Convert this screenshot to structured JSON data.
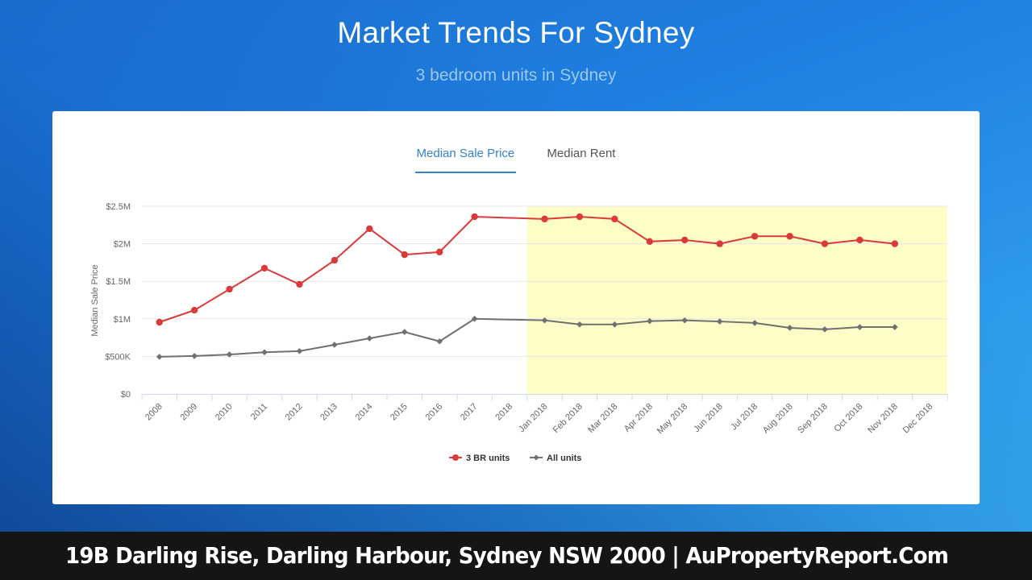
{
  "header": {
    "title": "Market Trends For Sydney",
    "subtitle": "3 bedroom units in Sydney"
  },
  "tabs": [
    {
      "label": "Median Sale Price",
      "active": true
    },
    {
      "label": "Median Rent",
      "active": false
    }
  ],
  "footer": {
    "text": "19B Darling Rise, Darling Harbour, Sydney NSW 2000 | AuPropertyReport.Com"
  },
  "colors": {
    "series_3br": "#d93a3a",
    "series_all": "#707070",
    "highlight_band": "#fdfdc8",
    "tab_active": "#3383cc",
    "footer_bg": "#151515"
  },
  "chart_data": {
    "type": "line",
    "title": "",
    "xlabel": "",
    "ylabel": "Median Sale Price",
    "ylim": [
      0,
      2500000
    ],
    "y_ticks": [
      "$0",
      "$500K",
      "$1M",
      "$1.5M",
      "$2M",
      "$2.5M"
    ],
    "y_tick_values": [
      0,
      500000,
      1000000,
      1500000,
      2000000,
      2500000
    ],
    "grid": true,
    "legend_position": "bottom",
    "categories": [
      "2008",
      "2009",
      "2010",
      "2011",
      "2012",
      "2013",
      "2014",
      "2015",
      "2016",
      "2017",
      "2018",
      "Jan 2018",
      "Feb 2018",
      "Mar 2018",
      "Apr 2018",
      "May 2018",
      "Jun 2018",
      "Jul 2018",
      "Aug 2018",
      "Sep 2018",
      "Oct 2018",
      "Nov 2018",
      "Dec 2018"
    ],
    "highlight_range": {
      "from": "Jan 2018",
      "to": "Dec 2018"
    },
    "series": [
      {
        "name": "3 BR units",
        "marker": "circle",
        "values": [
          955000,
          1115000,
          1395000,
          1675000,
          1460000,
          1780000,
          2200000,
          1855000,
          1890000,
          2360000,
          null,
          2330000,
          2360000,
          2330000,
          2030000,
          2050000,
          2000000,
          2100000,
          2100000,
          2000000,
          2050000,
          2000000,
          null
        ]
      },
      {
        "name": "All units",
        "marker": "diamond",
        "values": [
          495000,
          505000,
          525000,
          555000,
          570000,
          655000,
          740000,
          825000,
          700000,
          1000000,
          null,
          980000,
          925000,
          925000,
          970000,
          980000,
          965000,
          945000,
          880000,
          860000,
          890000,
          890000,
          null
        ]
      }
    ]
  }
}
